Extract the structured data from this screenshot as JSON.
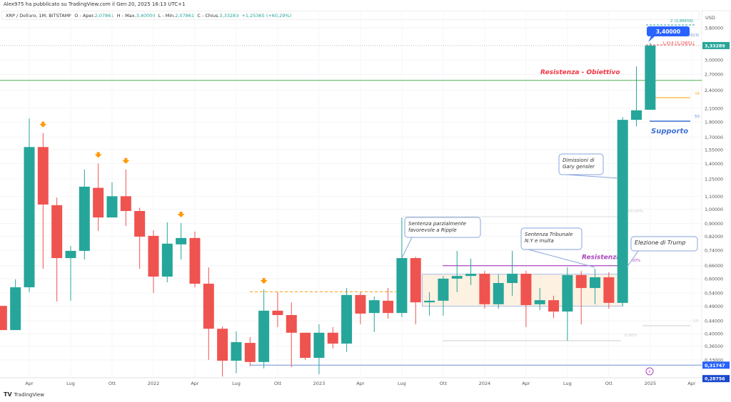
{
  "header": {
    "publisher": "Alex975 ha pubblicato su TradingView.com il Gen 20, 2025 16:13 UTC+1",
    "symbol": "XRP / Dollaro, 1M, BITSTAMP",
    "open_label": "O - Aper.",
    "open": "2,07861",
    "high_label": "H - Max.",
    "high": "3,40000",
    "low_label": "L - Min.",
    "low": "2,07861",
    "close_label": "C - Chius.",
    "close": "3,33289",
    "change": "+1,25365 (+60,29%)"
  },
  "footer": {
    "brand": "TradingView"
  },
  "colors": {
    "up": "#26a69a",
    "down": "#ef5350",
    "support": "#3d6fd6",
    "resistance_line": "#4caf50",
    "resistance_text": "#f23645",
    "range_resistance": "#ab47bc",
    "fib_38": "#f9b52e",
    "arrow": "#ff9800",
    "range_fill": "#fdf1e1"
  },
  "chart_data": {
    "type": "candlestick",
    "scale": "log",
    "currency": "USD",
    "ylim": [
      0.28,
      3.95
    ],
    "x_tick_labels": [
      "Apr",
      "Lug",
      "Ott",
      "2022",
      "Apr",
      "Lug",
      "Ott",
      "2023",
      "Apr",
      "Lug",
      "Ott",
      "2024",
      "Apr",
      "Lug",
      "Ott",
      "2025",
      "Apr"
    ],
    "y_tick_labels": [
      "3,80000",
      "3,00000",
      "2,70000",
      "2,40000",
      "2,10000",
      "1,90000",
      "1,70000",
      "1,55000",
      "1,40000",
      "1,25000",
      "1,10000",
      "1,00000",
      "0,90000",
      "0,82000",
      "0,74000",
      "0,66000",
      "0,60000",
      "0,54000",
      "0,49000",
      "0,44000",
      "0,40000",
      "0,36500",
      "0,33000"
    ],
    "y_tick_values": [
      3.8,
      3.0,
      2.7,
      2.4,
      2.1,
      1.9,
      1.7,
      1.55,
      1.4,
      1.25,
      1.1,
      1.0,
      0.9,
      0.82,
      0.74,
      0.66,
      0.6,
      0.54,
      0.49,
      0.44,
      0.4,
      0.365,
      0.33
    ],
    "price_tags": [
      {
        "label": "3,33289",
        "value": 3.33289,
        "color": "#26a69a"
      },
      {
        "label": "0,31747",
        "value": 0.31747,
        "color": "#2962ff"
      },
      {
        "label": "0,28756",
        "value": 0.28756,
        "color": "#1848cc"
      }
    ],
    "candles": [
      [
        "2021-02",
        0.491,
        0.491,
        0.411,
        0.411
      ],
      [
        "2021-03",
        0.411,
        0.597,
        0.411,
        0.563
      ],
      [
        "2021-04",
        0.563,
        1.95,
        0.543,
        1.58
      ],
      [
        "2021-05",
        1.58,
        1.75,
        0.645,
        1.035
      ],
      [
        "2021-06",
        1.03,
        1.09,
        0.507,
        0.698
      ],
      [
        "2021-07",
        0.698,
        0.763,
        0.51,
        0.736
      ],
      [
        "2021-08",
        0.736,
        1.34,
        0.691,
        1.18
      ],
      [
        "2021-09",
        1.17,
        1.4,
        0.852,
        0.941
      ],
      [
        "2021-10",
        0.941,
        1.22,
        0.941,
        1.1
      ],
      [
        "2021-11",
        1.1,
        1.34,
        0.884,
        0.987
      ],
      [
        "2021-12",
        0.987,
        1.01,
        0.645,
        0.817
      ],
      [
        "2022-01",
        0.822,
        0.857,
        0.54,
        0.609
      ],
      [
        "2022-02",
        0.609,
        0.908,
        0.584,
        0.776
      ],
      [
        "2022-03",
        0.772,
        0.903,
        0.691,
        0.809
      ],
      [
        "2022-04",
        0.809,
        0.848,
        0.563,
        0.578
      ],
      [
        "2022-05",
        0.578,
        0.652,
        0.33,
        0.415
      ],
      [
        "2022-06",
        0.415,
        0.422,
        0.292,
        0.328
      ],
      [
        "2022-07",
        0.328,
        0.407,
        0.299,
        0.376
      ],
      [
        "2022-08",
        0.374,
        0.39,
        0.315,
        0.325
      ],
      [
        "2022-09",
        0.325,
        0.554,
        0.31,
        0.474
      ],
      [
        "2022-10",
        0.474,
        0.543,
        0.42,
        0.459
      ],
      [
        "2022-11",
        0.459,
        0.504,
        0.313,
        0.403
      ],
      [
        "2022-12",
        0.403,
        0.403,
        0.33,
        0.335
      ],
      [
        "2023-01",
        0.335,
        0.429,
        0.297,
        0.403
      ],
      [
        "2023-02",
        0.403,
        0.42,
        0.359,
        0.372
      ],
      [
        "2023-03",
        0.372,
        0.56,
        0.35,
        0.532
      ],
      [
        "2023-04",
        0.532,
        0.543,
        0.429,
        0.464
      ],
      [
        "2023-05",
        0.466,
        0.526,
        0.405,
        0.512
      ],
      [
        "2023-06",
        0.51,
        0.56,
        0.447,
        0.466
      ],
      [
        "2023-07",
        0.466,
        0.941,
        0.452,
        0.698
      ],
      [
        "2023-08",
        0.698,
        0.705,
        0.429,
        0.504
      ],
      [
        "2023-09",
        0.504,
        0.543,
        0.457,
        0.51
      ],
      [
        "2023-10",
        0.51,
        0.612,
        0.457,
        0.6
      ],
      [
        "2023-11",
        0.6,
        0.736,
        0.543,
        0.612
      ],
      [
        "2023-12",
        0.612,
        0.695,
        0.572,
        0.622
      ],
      [
        "2024-01",
        0.622,
        0.635,
        0.481,
        0.497
      ],
      [
        "2024-02",
        0.497,
        0.619,
        0.481,
        0.581
      ],
      [
        "2024-03",
        0.581,
        0.736,
        0.529,
        0.622
      ],
      [
        "2024-04",
        0.622,
        0.635,
        0.42,
        0.494
      ],
      [
        "2024-05",
        0.497,
        0.56,
        0.476,
        0.512
      ],
      [
        "2024-06",
        0.512,
        0.529,
        0.449,
        0.471
      ],
      [
        "2024-07",
        0.471,
        0.652,
        0.38,
        0.616
      ],
      [
        "2024-08",
        0.616,
        0.635,
        0.429,
        0.56
      ],
      [
        "2024-09",
        0.56,
        0.645,
        0.497,
        0.606
      ],
      [
        "2024-10",
        0.606,
        0.629,
        0.481,
        0.502
      ],
      [
        "2024-11",
        0.502,
        1.97,
        0.49,
        1.93
      ],
      [
        "2024-12",
        1.93,
        2.86,
        1.84,
        2.07
      ],
      [
        "2025-01",
        2.07861,
        3.4,
        2.07861,
        3.33289
      ]
    ],
    "sell_arrows_at": [
      "2021-05",
      "2021-09",
      "2021-11",
      "2022-03",
      "2022-09"
    ],
    "annotations": {
      "resistance_target": {
        "text": "Resistenza - Obiettivo",
        "value": 2.58
      },
      "support": {
        "text": "Supporto",
        "value": 1.92
      },
      "range_resistance": {
        "text": "Resistenza",
        "value": 0.66
      },
      "range_box": {
        "from": "2023-09",
        "to": "2024-11",
        "low": 0.49,
        "high": 0.62
      },
      "orange_level": {
        "value": 0.545
      },
      "blue_level": {
        "value": 0.31747
      },
      "high_bubble": "3,40000",
      "fib_labels": [
        "2 (3,88658)",
        "1,618 (3,60323)",
        "1,414 (3,29851)",
        "38",
        "50",
        "00.00%",
        "00%",
        "0,00%",
        "10"
      ],
      "callouts": [
        "Sentenza parzialmente\nfavorevole a Ripple",
        "Sentenza Tribunale\nN.Y e multa",
        "Dimissioni di\nGary gensler",
        "Elezione di Trump"
      ]
    }
  }
}
